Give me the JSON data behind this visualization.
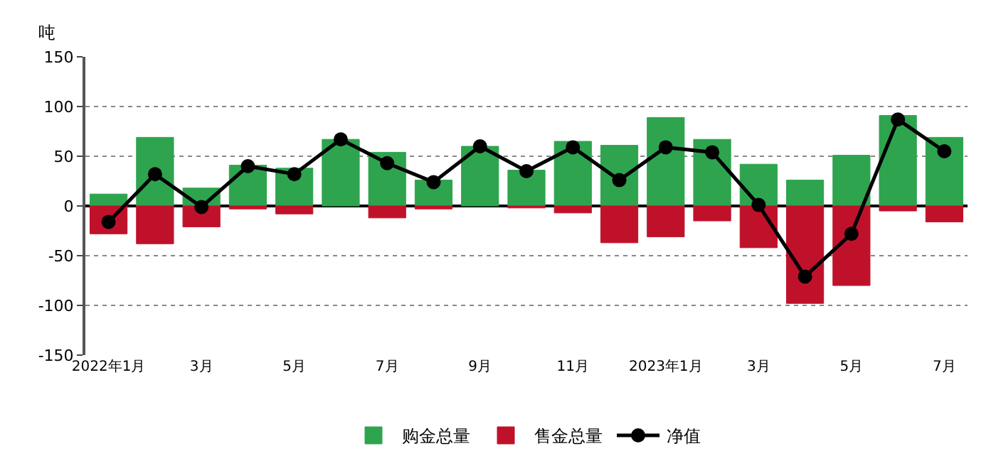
{
  "chart_data": {
    "type": "bar",
    "ylabel": "吨",
    "categories": [
      "2022年1月",
      null,
      "3月",
      null,
      "5月",
      null,
      "7月",
      null,
      "9月",
      null,
      "11月",
      null,
      "2023年1月",
      null,
      "3月",
      null,
      "5月",
      null,
      "7月"
    ],
    "series": [
      {
        "name": "购金总量",
        "color": "#2ea44f",
        "values": [
          12,
          69,
          18,
          41,
          38,
          67,
          54,
          26,
          60,
          36,
          65,
          61,
          89,
          67,
          42,
          26,
          51,
          91,
          69
        ]
      },
      {
        "name": "售金总量",
        "color": "#c0112b",
        "values": [
          -28,
          -38,
          -21,
          -3,
          -8,
          null,
          -12,
          -3,
          null,
          -2,
          -7,
          -37,
          -31,
          -15,
          -42,
          -98,
          -80,
          -5,
          -16
        ]
      },
      {
        "name": "净值",
        "type": "line",
        "color": "#000000",
        "values": [
          -16,
          32,
          -1,
          40,
          32,
          67,
          43,
          24,
          60,
          35,
          59,
          26,
          59,
          54,
          1,
          -71,
          -28,
          87,
          55
        ]
      }
    ],
    "stacked": true,
    "ylim": [
      -150,
      150
    ],
    "yticks": [
      -150,
      -100,
      -50,
      0,
      50,
      100,
      150
    ],
    "grid": "y",
    "legend": "bottom",
    "marker": "circle",
    "line_style": "solid"
  }
}
